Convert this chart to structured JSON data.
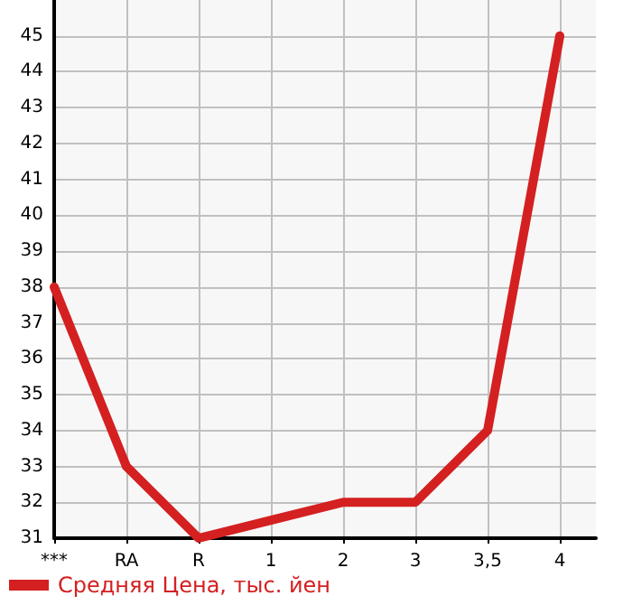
{
  "chart_data": {
    "type": "line",
    "categories": [
      "***",
      "RA",
      "R",
      "1",
      "2",
      "3",
      "3,5",
      "4"
    ],
    "series": [
      {
        "name": "Средняя Цена, тыс. йен",
        "color": "#d42020",
        "values": [
          38,
          33,
          31,
          31.5,
          32,
          32,
          34,
          45
        ]
      }
    ],
    "ylim": [
      31,
      46
    ],
    "yticks": [
      31,
      32,
      33,
      34,
      35,
      36,
      37,
      38,
      39,
      40,
      41,
      42,
      43,
      44,
      45
    ],
    "grid": true,
    "legend": "bottom left",
    "marker": "none",
    "line_style": "solid"
  }
}
